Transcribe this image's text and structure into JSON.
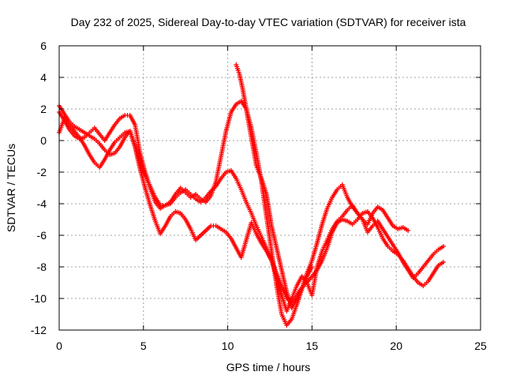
{
  "chart_data": {
    "type": "scatter",
    "title": "Day 232 of 2025, Sidereal Day-to-day VTEC variation (SDTVAR) for receiver ista",
    "xlabel": "GPS time / hours",
    "ylabel": "SDTVAR / TECUs",
    "xlim": [
      0,
      25
    ],
    "ylim": [
      -12,
      6
    ],
    "xticks": [
      "0",
      "5",
      "10",
      "15",
      "20",
      "25"
    ],
    "yticks": [
      "-12",
      "-10",
      "-8",
      "-6",
      "-4",
      "-2",
      "0",
      "2",
      "4",
      "6"
    ],
    "grid": true,
    "marker": "+",
    "color": "#ff0000",
    "series": [
      {
        "points": [
          [
            0.0,
            2.2
          ],
          [
            0.3,
            1.7
          ],
          [
            0.6,
            1.2
          ],
          [
            0.9,
            0.9
          ],
          [
            1.2,
            0.7
          ],
          [
            1.5,
            0.5
          ],
          [
            1.8,
            0.3
          ],
          [
            2.1,
            0.1
          ],
          [
            2.4,
            -0.2
          ],
          [
            2.7,
            -0.6
          ],
          [
            3.0,
            -0.9
          ],
          [
            3.3,
            -0.8
          ],
          [
            3.6,
            -0.4
          ],
          [
            3.9,
            0.2
          ],
          [
            4.2,
            0.6
          ],
          [
            4.5,
            -0.3
          ],
          [
            4.8,
            -1.4
          ],
          [
            5.1,
            -2.2
          ],
          [
            5.4,
            -2.9
          ],
          [
            5.7,
            -3.6
          ],
          [
            6.0,
            -4.1
          ],
          [
            6.3,
            -4.1
          ],
          [
            6.6,
            -4.0
          ],
          [
            6.9,
            -3.6
          ],
          [
            7.2,
            -3.3
          ],
          [
            7.5,
            -3.1
          ],
          [
            7.8,
            -3.4
          ],
          [
            8.1,
            -3.7
          ],
          [
            8.4,
            -3.9
          ],
          [
            8.7,
            -3.6
          ],
          [
            9.0,
            -3.2
          ],
          [
            9.3,
            -2.9
          ],
          [
            9.6,
            -2.4
          ],
          [
            9.9,
            -2.0
          ],
          [
            10.2,
            -1.9
          ],
          [
            10.5,
            -2.4
          ],
          [
            10.8,
            -3.1
          ],
          [
            11.1,
            -3.9
          ],
          [
            11.4,
            -4.6
          ],
          [
            11.7,
            -5.4
          ],
          [
            12.0,
            -6.1
          ],
          [
            12.3,
            -6.8
          ],
          [
            12.6,
            -7.6
          ],
          [
            12.9,
            -8.4
          ],
          [
            13.2,
            -9.2
          ],
          [
            13.5,
            -10.0
          ],
          [
            13.8,
            -10.2
          ],
          [
            14.1,
            -9.8
          ],
          [
            14.4,
            -9.3
          ],
          [
            14.7,
            -9.0
          ],
          [
            15.0,
            -8.6
          ],
          [
            15.3,
            -8.2
          ],
          [
            15.6,
            -7.6
          ],
          [
            15.9,
            -6.8
          ],
          [
            16.2,
            -5.8
          ],
          [
            16.5,
            -5.2
          ],
          [
            16.8,
            -5.0
          ],
          [
            17.1,
            -5.1
          ],
          [
            17.4,
            -5.3
          ],
          [
            17.7,
            -5.0
          ],
          [
            18.0,
            -4.6
          ],
          [
            18.3,
            -4.5
          ],
          [
            18.6,
            -4.9
          ],
          [
            18.9,
            -5.5
          ],
          [
            19.2,
            -6.2
          ],
          [
            19.5,
            -6.7
          ],
          [
            19.8,
            -7.0
          ],
          [
            20.1,
            -7.2
          ],
          [
            20.4,
            -7.6
          ],
          [
            20.7,
            -8.1
          ],
          [
            21.0,
            -8.6
          ],
          [
            21.3,
            -9.0
          ],
          [
            21.6,
            -9.2
          ],
          [
            21.9,
            -8.9
          ],
          [
            22.2,
            -8.4
          ],
          [
            22.5,
            -7.9
          ],
          [
            22.8,
            -7.7
          ]
        ]
      },
      {
        "points": [
          [
            0.0,
            0.5
          ],
          [
            0.3,
            1.4
          ],
          [
            0.6,
            1.0
          ],
          [
            0.9,
            0.6
          ],
          [
            1.2,
            0.2
          ],
          [
            1.5,
            -0.3
          ],
          [
            1.8,
            -0.9
          ],
          [
            2.1,
            -1.4
          ],
          [
            2.4,
            -1.7
          ],
          [
            2.7,
            -1.2
          ],
          [
            3.0,
            -0.6
          ],
          [
            3.3,
            -0.1
          ],
          [
            3.6,
            0.2
          ],
          [
            3.9,
            0.5
          ],
          [
            4.2,
            0.6
          ],
          [
            4.5,
            -0.4
          ],
          [
            4.8,
            -1.8
          ],
          [
            5.1,
            -3.0
          ],
          [
            5.4,
            -4.1
          ],
          [
            5.7,
            -5.1
          ],
          [
            6.0,
            -5.9
          ],
          [
            6.3,
            -5.4
          ],
          [
            6.6,
            -4.8
          ],
          [
            6.9,
            -4.5
          ],
          [
            7.2,
            -4.6
          ],
          [
            7.5,
            -5.0
          ],
          [
            7.8,
            -5.6
          ],
          [
            8.1,
            -6.3
          ],
          [
            9.0,
            -5.4
          ],
          [
            9.3,
            -5.4
          ],
          [
            9.6,
            -5.6
          ],
          [
            9.9,
            -5.8
          ],
          [
            10.2,
            -6.2
          ],
          [
            10.5,
            -6.8
          ],
          [
            10.8,
            -7.4
          ],
          [
            11.4,
            -5.2
          ],
          [
            11.7,
            -5.9
          ],
          [
            12.0,
            -6.5
          ],
          [
            12.3,
            -7.0
          ],
          [
            12.6,
            -7.6
          ],
          [
            12.9,
            -8.6
          ],
          [
            13.2,
            -9.8
          ],
          [
            13.5,
            -10.8
          ],
          [
            13.8,
            -10.0
          ],
          [
            14.1,
            -9.2
          ],
          [
            14.4,
            -8.6
          ],
          [
            14.7,
            -9.0
          ],
          [
            15.0,
            -9.8
          ],
          [
            15.3,
            -8.0
          ],
          [
            15.6,
            -7.0
          ],
          [
            15.9,
            -6.3
          ],
          [
            16.2,
            -5.6
          ],
          [
            16.5,
            -5.1
          ],
          [
            16.8,
            -4.8
          ],
          [
            17.1,
            -4.4
          ],
          [
            17.4,
            -4.1
          ],
          [
            17.7,
            -4.6
          ],
          [
            18.0,
            -5.0
          ],
          [
            18.3,
            -5.3
          ],
          [
            18.6,
            -4.6
          ],
          [
            18.9,
            -4.2
          ],
          [
            19.2,
            -4.4
          ],
          [
            19.5,
            -4.9
          ],
          [
            19.8,
            -5.4
          ],
          [
            20.1,
            -5.6
          ],
          [
            20.4,
            -5.5
          ],
          [
            20.7,
            -5.7
          ]
        ]
      },
      {
        "points": [
          [
            0.0,
            1.8
          ],
          [
            0.3,
            1.3
          ],
          [
            0.6,
            0.7
          ],
          [
            0.9,
            0.3
          ],
          [
            1.2,
            0.1
          ],
          [
            1.5,
            0.2
          ],
          [
            1.8,
            0.5
          ],
          [
            2.1,
            0.8
          ],
          [
            2.4,
            0.4
          ],
          [
            2.7,
            0.0
          ],
          [
            3.0,
            0.5
          ],
          [
            3.3,
            1.0
          ],
          [
            3.6,
            1.4
          ],
          [
            3.9,
            1.6
          ],
          [
            4.2,
            1.6
          ],
          [
            4.5,
            1.0
          ],
          [
            4.8,
            -0.8
          ],
          [
            5.1,
            -2.0
          ],
          [
            5.4,
            -3.0
          ],
          [
            5.7,
            -3.9
          ],
          [
            6.0,
            -4.3
          ],
          [
            6.3,
            -4.1
          ],
          [
            6.6,
            -3.9
          ],
          [
            6.9,
            -3.4
          ],
          [
            7.2,
            -3.0
          ],
          [
            7.5,
            -3.3
          ],
          [
            7.8,
            -3.6
          ],
          [
            8.1,
            -3.4
          ],
          [
            8.4,
            -3.7
          ],
          [
            8.7,
            -3.9
          ],
          [
            9.0,
            -3.5
          ],
          [
            9.3,
            -2.6
          ],
          [
            9.6,
            -1.0
          ],
          [
            9.9,
            0.6
          ],
          [
            10.2,
            1.8
          ],
          [
            10.5,
            2.3
          ],
          [
            10.8,
            2.5
          ],
          [
            11.1,
            2.0
          ],
          [
            11.4,
            0.8
          ],
          [
            11.7,
            -0.8
          ],
          [
            12.0,
            -2.6
          ],
          [
            12.3,
            -4.8
          ],
          [
            12.6,
            -7.0
          ],
          [
            12.9,
            -9.2
          ],
          [
            13.2,
            -11.0
          ],
          [
            13.5,
            -11.7
          ],
          [
            13.8,
            -11.3
          ],
          [
            14.1,
            -10.4
          ],
          [
            14.4,
            -9.4
          ],
          [
            14.7,
            -8.4
          ],
          [
            15.0,
            -7.6
          ],
          [
            15.3,
            -6.5
          ],
          [
            15.6,
            -5.3
          ],
          [
            15.9,
            -4.3
          ],
          [
            16.2,
            -3.6
          ],
          [
            16.5,
            -3.1
          ],
          [
            16.8,
            -2.8
          ],
          [
            17.1,
            -3.6
          ],
          [
            17.4,
            -4.2
          ],
          [
            17.7,
            -4.6
          ],
          [
            18.0,
            -5.0
          ],
          [
            18.3,
            -5.8
          ],
          [
            18.6,
            -5.4
          ],
          [
            18.9,
            -5.1
          ],
          [
            19.2,
            -5.6
          ],
          [
            19.5,
            -6.1
          ],
          [
            19.8,
            -6.6
          ],
          [
            20.1,
            -7.1
          ],
          [
            20.4,
            -7.7
          ],
          [
            20.7,
            -8.2
          ],
          [
            21.0,
            -8.7
          ],
          [
            21.3,
            -8.4
          ],
          [
            21.6,
            -8.0
          ],
          [
            21.9,
            -7.6
          ],
          [
            22.2,
            -7.2
          ],
          [
            22.5,
            -6.9
          ],
          [
            22.8,
            -6.7
          ]
        ]
      },
      {
        "points": [
          [
            10.5,
            4.8
          ],
          [
            10.7,
            4.2
          ],
          [
            10.9,
            3.2
          ],
          [
            11.1,
            2.0
          ],
          [
            11.3,
            0.8
          ],
          [
            11.5,
            -0.4
          ],
          [
            11.7,
            -1.6
          ],
          [
            12.0,
            -2.4
          ],
          [
            12.3,
            -3.4
          ],
          [
            12.6,
            -5.4
          ],
          [
            12.9,
            -6.8
          ],
          [
            13.2,
            -8.2
          ],
          [
            13.5,
            -9.6
          ],
          [
            13.8,
            -10.6
          ],
          [
            14.1,
            -10.0
          ],
          [
            14.4,
            -9.4
          ],
          [
            14.7,
            -8.6
          ],
          [
            15.0,
            -8.0
          ]
        ]
      }
    ]
  }
}
